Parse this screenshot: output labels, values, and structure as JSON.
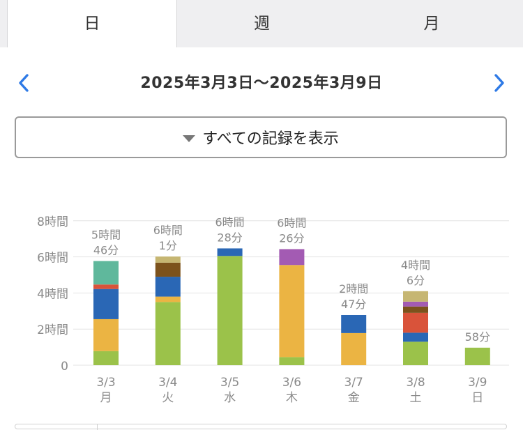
{
  "tabs": [
    {
      "label": "日",
      "active": true
    },
    {
      "label": "週",
      "active": false
    },
    {
      "label": "月",
      "active": false
    }
  ],
  "date_range": "2025年3月3日〜2025年3月9日",
  "filter_button": "すべての記録を表示",
  "colors": {
    "accent": "#2e7ae6",
    "green": "#9bc24a",
    "orange": "#ebb443",
    "blue": "#2a67b5",
    "red": "#d9533a",
    "teal": "#5fb89c",
    "brown": "#7c521c",
    "khaki": "#c6b672",
    "purple": "#a35bb3"
  },
  "chart_data": {
    "type": "bar",
    "stacked": true,
    "title": "",
    "xlabel": "",
    "ylabel": "",
    "ylim": [
      0,
      8
    ],
    "yticks": [
      {
        "value": 0,
        "label": "0"
      },
      {
        "value": 2,
        "label": "2時間"
      },
      {
        "value": 4,
        "label": "4時間"
      },
      {
        "value": 6,
        "label": "6時間"
      },
      {
        "value": 8,
        "label": "8時間"
      }
    ],
    "grid": true,
    "categories": [
      "3/3",
      "3/4",
      "3/5",
      "3/6",
      "3/7",
      "3/8",
      "3/9"
    ],
    "weekdays": [
      "月",
      "火",
      "水",
      "木",
      "金",
      "土",
      "日"
    ],
    "total_labels": [
      [
        "5時間",
        "46分"
      ],
      [
        "6時間",
        "1分"
      ],
      [
        "6時間",
        "28分"
      ],
      [
        "6時間",
        "26分"
      ],
      [
        "2時間",
        "47分"
      ],
      [
        "4時間",
        "6分"
      ],
      [
        "58分"
      ]
    ],
    "bars": [
      [
        {
          "color": "green",
          "value": 0.78
        },
        {
          "color": "orange",
          "value": 1.77
        },
        {
          "color": "blue",
          "value": 1.67
        },
        {
          "color": "red",
          "value": 0.25
        },
        {
          "color": "teal",
          "value": 1.3
        }
      ],
      [
        {
          "color": "green",
          "value": 3.5
        },
        {
          "color": "orange",
          "value": 0.3
        },
        {
          "color": "blue",
          "value": 1.1
        },
        {
          "color": "brown",
          "value": 0.78
        },
        {
          "color": "khaki",
          "value": 0.34
        }
      ],
      [
        {
          "color": "green",
          "value": 6.05
        },
        {
          "color": "blue",
          "value": 0.42
        }
      ],
      [
        {
          "color": "green",
          "value": 0.45
        },
        {
          "color": "orange",
          "value": 5.1
        },
        {
          "color": "purple",
          "value": 0.88
        }
      ],
      [
        {
          "color": "orange",
          "value": 1.78
        },
        {
          "color": "blue",
          "value": 1.0
        }
      ],
      [
        {
          "color": "green",
          "value": 1.3
        },
        {
          "color": "blue",
          "value": 0.5
        },
        {
          "color": "red",
          "value": 1.1
        },
        {
          "color": "brown",
          "value": 0.35
        },
        {
          "color": "purple",
          "value": 0.27
        },
        {
          "color": "khaki",
          "value": 0.58
        }
      ],
      [
        {
          "color": "green",
          "value": 0.97
        }
      ]
    ]
  }
}
